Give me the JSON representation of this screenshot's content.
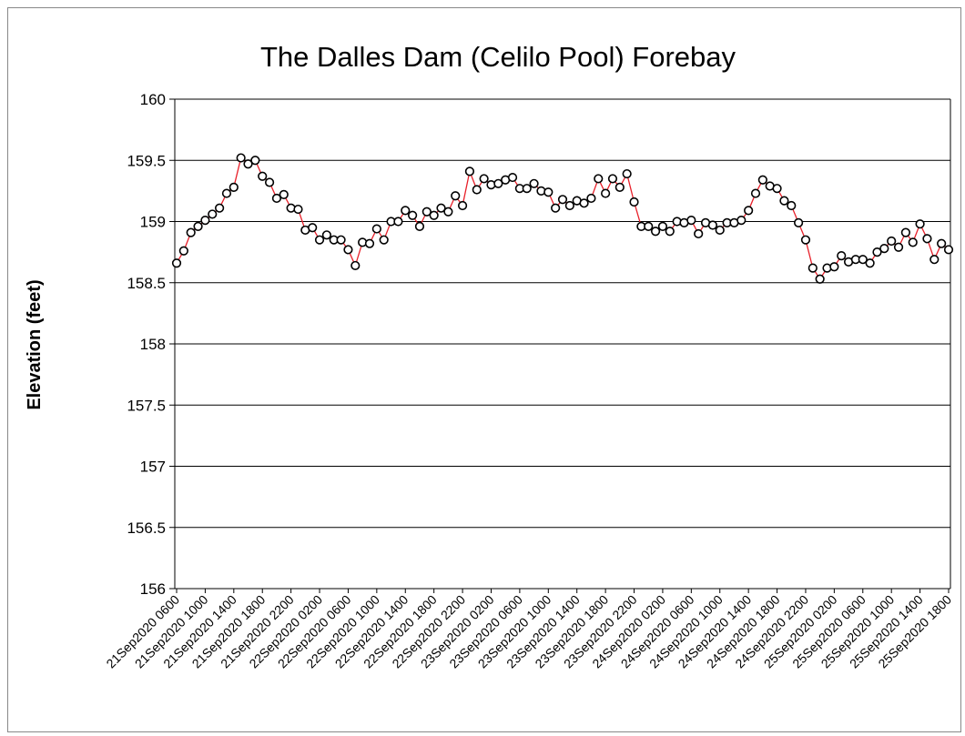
{
  "chart_data": {
    "type": "line",
    "title": "The Dalles Dam (Celilo Pool) Forebay",
    "xlabel": "",
    "ylabel": "Elevation (feet)",
    "ylim": [
      156,
      160
    ],
    "y_ticks": [
      "156",
      "156.5",
      "157",
      "157.5",
      "158",
      "158.5",
      "159",
      "159.5",
      "160"
    ],
    "grid": true,
    "legend": "none",
    "colors": {
      "line": "#e8202a",
      "marker_edge": "#000000",
      "marker_fill": "#ffffff",
      "grid": "#000000"
    },
    "x_tick_labels": [
      "21Sep2020 0600",
      "21Sep2020 1000",
      "21Sep2020 1400",
      "21Sep2020 1800",
      "21Sep2020 2200",
      "22Sep2020 0200",
      "22Sep2020 0600",
      "22Sep2020 1000",
      "22Sep2020 1400",
      "22Sep2020 1800",
      "22Sep2020 2200",
      "23Sep2020 0200",
      "23Sep2020 0600",
      "23Sep2020 1000",
      "23Sep2020 1400",
      "23Sep2020 1800",
      "23Sep2020 2200",
      "24Sep2020 0200",
      "24Sep2020 0600",
      "24Sep2020 1000",
      "24Sep2020 1400",
      "24Sep2020 1800",
      "24Sep2020 2200",
      "25Sep2020 0200",
      "25Sep2020 0600",
      "25Sep2020 1000",
      "25Sep2020 1400",
      "25Sep2020 1800"
    ],
    "series": [
      {
        "values": [
          158.66,
          158.76,
          158.91,
          158.96,
          159.01,
          159.06,
          159.11,
          159.23,
          159.28,
          159.52,
          159.47,
          159.5,
          159.37,
          159.32,
          159.19,
          159.22,
          159.11,
          159.1,
          158.93,
          158.95,
          158.85,
          158.89,
          158.85,
          158.85,
          158.77,
          158.64,
          158.83,
          158.82,
          158.94,
          158.85,
          159.0,
          159.0,
          159.09,
          159.05,
          158.96,
          159.08,
          159.05,
          159.11,
          159.08,
          159.21,
          159.13,
          159.41,
          159.26,
          159.35,
          159.3,
          159.31,
          159.34,
          159.36,
          159.27,
          159.27,
          159.31,
          159.25,
          159.24,
          159.11,
          159.18,
          159.13,
          159.17,
          159.15,
          159.19,
          159.35,
          159.23,
          159.35,
          159.28,
          159.39,
          159.16,
          158.96,
          158.96,
          158.92,
          158.96,
          158.92,
          159.0,
          158.99,
          159.01,
          158.9,
          158.99,
          158.97,
          158.93,
          158.99,
          158.99,
          159.01,
          159.09,
          159.23,
          159.34,
          159.29,
          159.27,
          159.17,
          159.13,
          158.99,
          158.85,
          158.62,
          158.53,
          158.62,
          158.63,
          158.72,
          158.67,
          158.69,
          158.69,
          158.66,
          158.75,
          158.78,
          158.84,
          158.79,
          158.91,
          158.83,
          158.98,
          158.86,
          158.69,
          158.82,
          158.77
        ]
      }
    ]
  }
}
